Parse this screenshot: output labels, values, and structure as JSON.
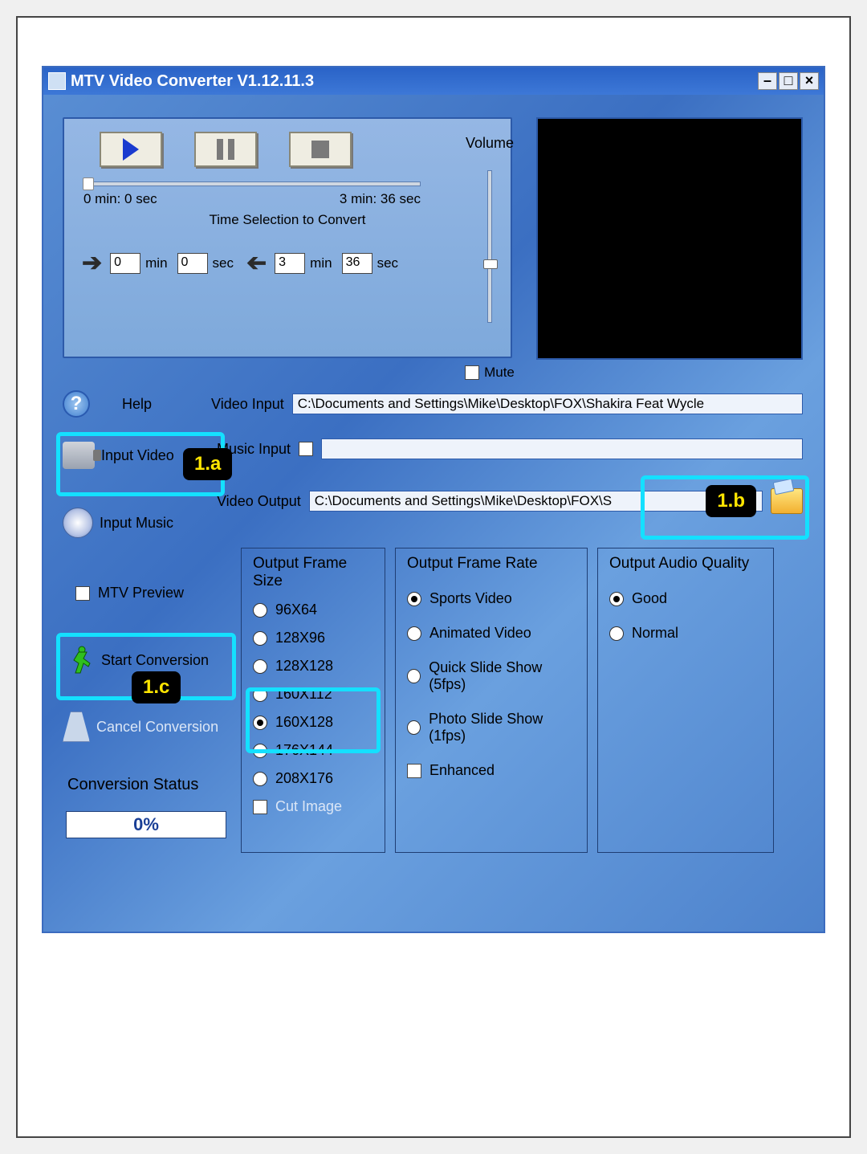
{
  "titlebar": {
    "text": "MTV Video Converter V1.12.11.3"
  },
  "player": {
    "time_start": "0 min: 0 sec",
    "time_end": "3 min: 36 sec",
    "selection_label": "Time Selection to Convert",
    "sel_min_a": "0",
    "sel_sec_a": "0",
    "sel_min_b": "3",
    "sel_sec_b": "36",
    "unit_min": "min",
    "unit_sec": "sec",
    "volume_label": "Volume",
    "mute_label": "Mute"
  },
  "paths": {
    "help_label": "Help",
    "video_input_label": "Video Input",
    "video_input_value": "C:\\Documents and Settings\\Mike\\Desktop\\FOX\\Shakira Feat Wycle",
    "music_input_label": "Music Input",
    "music_input_value": "",
    "video_output_label": "Video Output",
    "video_output_value": "C:\\Documents and Settings\\Mike\\Desktop\\FOX\\S"
  },
  "sidebar": {
    "input_video_label": "Input Video",
    "input_music_label": "Input Music",
    "mtv_preview_label": "MTV Preview",
    "start_label": "Start Conversion",
    "cancel_label": "Cancel Conversion",
    "status_label": "Conversion Status",
    "progress_text": "0%"
  },
  "groups": {
    "frame": {
      "label": "Output Frame Size",
      "options": [
        "96X64",
        "128X96",
        "128X128",
        "160X112",
        "160X128",
        "176X144",
        "208X176"
      ],
      "selected_index": 4,
      "cut_image_label": "Cut Image"
    },
    "rate": {
      "label": "Output Frame Rate",
      "options": [
        "Sports Video",
        "Animated Video",
        "Quick Slide Show (5fps)",
        "Photo Slide Show (1fps)"
      ],
      "selected_index": 0,
      "enhanced_label": "Enhanced"
    },
    "audio": {
      "label": "Output Audio Quality",
      "options": [
        "Good",
        "Normal"
      ],
      "selected_index": 0
    }
  },
  "annotations": {
    "a": "1.a",
    "b": "1.b",
    "c": "1.c"
  },
  "colors": {
    "callout_border": "#14e0ff",
    "tag_bg": "#000000",
    "tag_fg": "#ffe500"
  }
}
